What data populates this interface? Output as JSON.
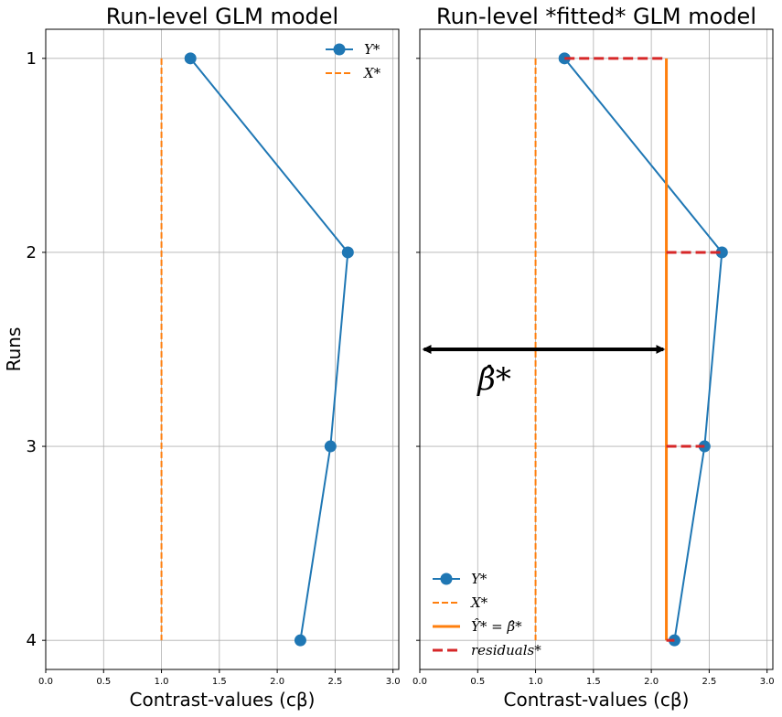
{
  "chart_data": [
    {
      "type": "line",
      "title": "Run-level GLM model",
      "xlabel": "Contrast-values (cβ)",
      "ylabel": "Runs",
      "xlim": [
        0,
        3.05
      ],
      "ylim": [
        4.15,
        0.85
      ],
      "grid": true,
      "legend_position": "top-right",
      "xticks": [
        "0.0",
        "0.5",
        "1.0",
        "1.5",
        "2.0",
        "2.5",
        "3.0"
      ],
      "yticks": [
        "1",
        "2",
        "3",
        "4"
      ],
      "series": [
        {
          "name": "Y*",
          "style": "line-marker",
          "color": "#1f77b4",
          "x": [
            1.25,
            2.61,
            2.46,
            2.2
          ],
          "y": [
            1,
            2,
            3,
            4
          ]
        },
        {
          "name": "X*",
          "style": "dashed",
          "color": "#ff7f0e",
          "x": [
            1.0,
            1.0
          ],
          "y": [
            1,
            4
          ]
        }
      ]
    },
    {
      "type": "line",
      "title": "Run-level *fitted* GLM model",
      "xlabel": "Contrast-values (cβ)",
      "ylabel": "",
      "xlim": [
        0,
        3.05
      ],
      "ylim": [
        4.15,
        0.85
      ],
      "grid": true,
      "legend_position": "bottom-left",
      "xticks": [
        "0.0",
        "0.5",
        "1.0",
        "1.5",
        "2.0",
        "2.5",
        "3.0"
      ],
      "series": [
        {
          "name": "Y*",
          "style": "line-marker",
          "color": "#1f77b4",
          "x": [
            1.25,
            2.61,
            2.46,
            2.2
          ],
          "y": [
            1,
            2,
            3,
            4
          ]
        },
        {
          "name": "X*",
          "style": "dashed",
          "color": "#ff7f0e",
          "x": [
            1.0,
            1.0
          ],
          "y": [
            1,
            4
          ]
        },
        {
          "name": "Ŷ* = β̂*",
          "style": "solid-thick",
          "color": "#ff7f0e",
          "x": [
            2.13,
            2.13
          ],
          "y": [
            1,
            4
          ]
        },
        {
          "name": "residuals*",
          "style": "dashed-thick",
          "color": "#d62728",
          "segments": [
            {
              "x": [
                1.25,
                2.13
              ],
              "y": [
                1,
                1
              ]
            },
            {
              "x": [
                2.13,
                2.61
              ],
              "y": [
                2,
                2
              ]
            },
            {
              "x": [
                2.13,
                2.46
              ],
              "y": [
                3,
                3
              ]
            },
            {
              "x": [
                2.13,
                2.2
              ],
              "y": [
                4,
                4
              ]
            }
          ]
        }
      ],
      "annotations": [
        {
          "type": "double-arrow",
          "label": "β̂*",
          "x": [
            0.02,
            2.12
          ],
          "y": 2.5,
          "label_x": 0.5,
          "label_y": 2.65,
          "color": "#000000"
        }
      ]
    }
  ]
}
